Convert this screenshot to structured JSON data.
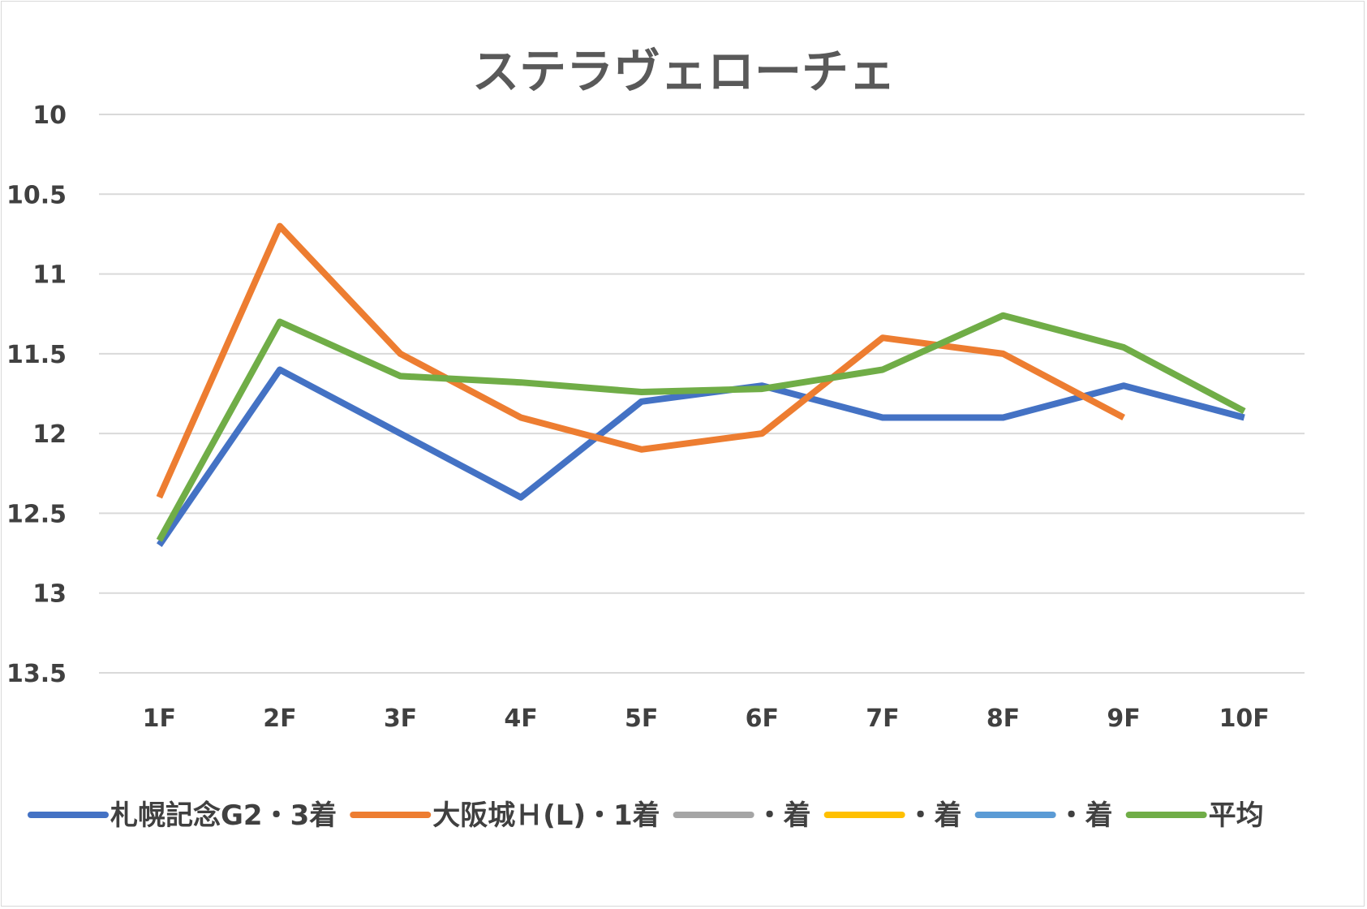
{
  "chart_data": {
    "type": "line",
    "title": "ステラヴェローチェ",
    "xlabel": "",
    "ylabel": "",
    "categories": [
      "1F",
      "2F",
      "3F",
      "4F",
      "5F",
      "6F",
      "7F",
      "8F",
      "9F",
      "10F"
    ],
    "y_ticks": [
      "10",
      "10.5",
      "11",
      "11.5",
      "12",
      "12.5",
      "13",
      "13.5"
    ],
    "ylim": [
      10,
      13.5
    ],
    "y_reversed": true,
    "grid": true,
    "legend_position": "bottom",
    "series": [
      {
        "name": "札幌記念G2・3着",
        "color": "#4472c4",
        "values": [
          12.7,
          11.6,
          12.0,
          12.4,
          11.8,
          11.7,
          11.9,
          11.9,
          11.7,
          11.9
        ]
      },
      {
        "name": "大阪城Ｈ(L)・1着",
        "color": "#ed7d31",
        "values": [
          12.4,
          10.7,
          11.5,
          11.9,
          12.1,
          12.0,
          11.4,
          11.5,
          11.9,
          null
        ]
      },
      {
        "name": "・着",
        "color": "#a5a5a5",
        "values": [
          null,
          null,
          null,
          null,
          null,
          null,
          null,
          null,
          null,
          null
        ]
      },
      {
        "name": "・着",
        "color": "#ffc000",
        "values": [
          null,
          null,
          null,
          null,
          null,
          null,
          null,
          null,
          null,
          null
        ]
      },
      {
        "name": "・着",
        "color": "#5b9bd5",
        "values": [
          null,
          null,
          null,
          null,
          null,
          null,
          null,
          null,
          null,
          null
        ]
      },
      {
        "name": "平均",
        "color": "#70ad47",
        "values": [
          12.67,
          11.3,
          11.64,
          11.68,
          11.74,
          11.72,
          11.6,
          11.26,
          11.46,
          11.86
        ]
      }
    ]
  }
}
